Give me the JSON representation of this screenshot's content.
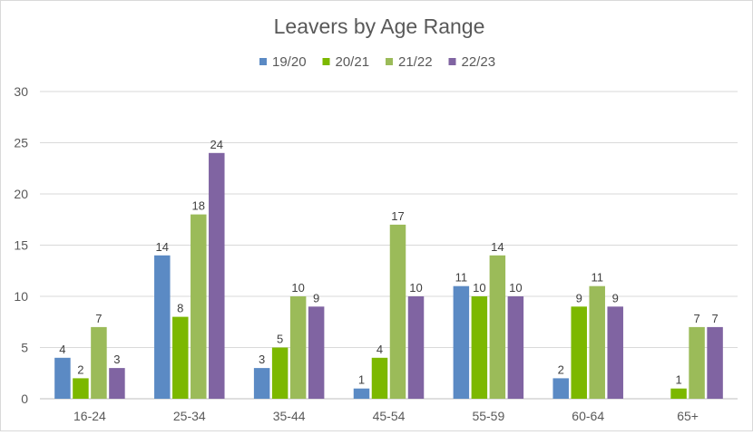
{
  "chart_data": {
    "type": "bar",
    "title": "Leavers by Age Range",
    "xlabel": "",
    "ylabel": "",
    "ylim": [
      0,
      30
    ],
    "yticks": [
      0,
      5,
      10,
      15,
      20,
      25,
      30
    ],
    "grid": true,
    "legend_position": "top",
    "categories": [
      "16-24",
      "25-34",
      "35-44",
      "45-54",
      "55-59",
      "60-64",
      "65+"
    ],
    "series": [
      {
        "name": "19/20",
        "color": "#5b8ac4",
        "values": [
          4,
          14,
          3,
          1,
          11,
          2,
          null
        ]
      },
      {
        "name": "20/21",
        "color": "#7cb800",
        "values": [
          2,
          8,
          5,
          4,
          10,
          9,
          1
        ]
      },
      {
        "name": "21/22",
        "color": "#9bbb59",
        "values": [
          7,
          18,
          10,
          17,
          14,
          11,
          7
        ]
      },
      {
        "name": "22/23",
        "color": "#8064a2",
        "values": [
          3,
          24,
          9,
          10,
          10,
          9,
          7
        ]
      }
    ]
  }
}
